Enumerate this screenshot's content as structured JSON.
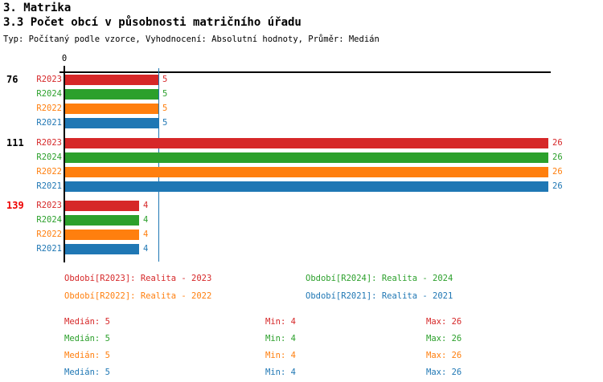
{
  "chart_data": {
    "type": "bar",
    "orientation": "horizontal",
    "title": "3. Matrika",
    "subtitle": "3.3 Počet obcí v působnosti matričního úřadu",
    "meta": "Typ: Počítaný podle vzorce, Vyhodnocení: Absolutní hodnoty, Průměr: Medián",
    "axis": {
      "zero_label": "0",
      "x_min": 0,
      "x_max": 26,
      "median_line_value": 5,
      "median_line_color": "#1f77b4",
      "axis_color": "#000000"
    },
    "series": [
      {
        "id": "R2023",
        "name": "Realita - 2023",
        "color": "#d62728"
      },
      {
        "id": "R2024",
        "name": "Realita - 2024",
        "color": "#2ca02c"
      },
      {
        "id": "R2022",
        "name": "Realita - 2022",
        "color": "#ff7f0e"
      },
      {
        "id": "R2021",
        "name": "Realita - 2021",
        "color": "#1f77b4"
      }
    ],
    "groups": [
      {
        "label": "76",
        "label_color": "#000000",
        "values": [
          5,
          5,
          5,
          5
        ]
      },
      {
        "label": "111",
        "label_color": "#000000",
        "values": [
          26,
          26,
          26,
          26
        ]
      },
      {
        "label": "139",
        "label_color": "#ee0000",
        "values": [
          4,
          4,
          4,
          4
        ]
      }
    ],
    "legend": [
      {
        "text": "Období[R2023]: Realita - 2023",
        "color": "#d62728"
      },
      {
        "text": "Období[R2024]: Realita - 2024",
        "color": "#2ca02c"
      },
      {
        "text": "Období[R2022]: Realita - 2022",
        "color": "#ff7f0e"
      },
      {
        "text": "Období[R2021]: Realita - 2021",
        "color": "#1f77b4"
      }
    ],
    "stats": [
      {
        "median": "Medián: 5",
        "min": "Min: 4",
        "max": "Max: 26",
        "color": "#d62728"
      },
      {
        "median": "Medián: 5",
        "min": "Min: 4",
        "max": "Max: 26",
        "color": "#2ca02c"
      },
      {
        "median": "Medián: 5",
        "min": "Min: 4",
        "max": "Max: 26",
        "color": "#ff7f0e"
      },
      {
        "median": "Medián: 5",
        "min": "Min: 4",
        "max": "Max: 26",
        "color": "#1f77b4"
      }
    ]
  }
}
